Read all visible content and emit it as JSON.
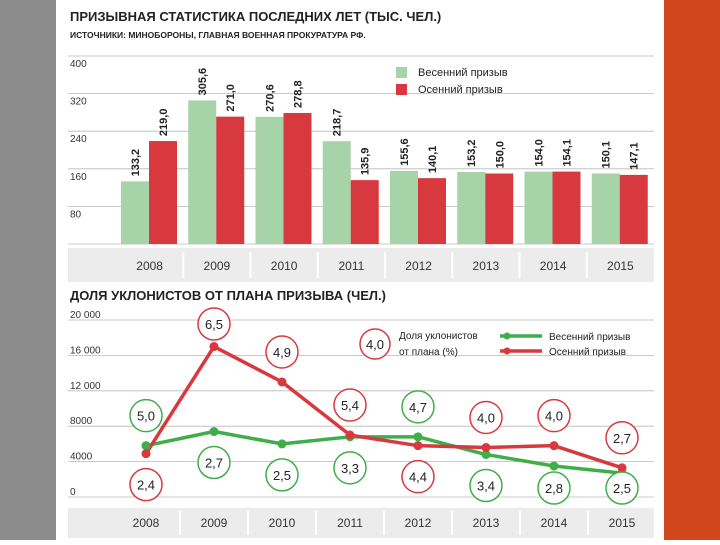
{
  "chart_data": [
    {
      "type": "bar",
      "title": "ПРИЗЫВНАЯ СТАТИСТИКА ПОСЛЕДНИХ ЛЕТ (ТЫС. ЧЕЛ.)",
      "subtitle": "ИСТОЧНИКИ: МИНОБОРОНЫ, ГЛАВНАЯ ВОЕННАЯ ПРОКУРАТУРА РФ.",
      "categories": [
        "2008",
        "2009",
        "2010",
        "2011",
        "2012",
        "2013",
        "2014",
        "2015"
      ],
      "series": [
        {
          "name": "Весенний призыв",
          "color": "#a6d3a8",
          "values": [
            133.2,
            305.6,
            270.6,
            218.7,
            155.6,
            153.2,
            154.0,
            150.1
          ],
          "labels": [
            "133,2",
            "305,6",
            "270,6",
            "218,7",
            "155,6",
            "153,2",
            "154,0",
            "150,1"
          ]
        },
        {
          "name": "Осенний призыв",
          "color": "#d8393f",
          "values": [
            219.0,
            271.0,
            278.8,
            135.9,
            140.1,
            150.0,
            154.1,
            147.1
          ],
          "labels": [
            "219,0",
            "271,0",
            "278,8",
            "135,9",
            "140,1",
            "150,0",
            "154,1",
            "147,1"
          ]
        }
      ],
      "yticks": [
        "400",
        "320",
        "240",
        "160",
        "80",
        "0"
      ],
      "ylim": [
        0,
        400
      ],
      "legend": "top-right"
    },
    {
      "type": "line",
      "title": "ДОЛЯ УКЛОНИСТОВ ОТ ПЛАНА ПРИЗЫВА (ЧЕЛ.)",
      "categories": [
        "2008",
        "2009",
        "2010",
        "2011",
        "2012",
        "2013",
        "2014",
        "2015"
      ],
      "series": [
        {
          "name": "Весенний призыв",
          "color": "#3fae49",
          "values": [
            5800,
            7400,
            6000,
            6800,
            6800,
            4800,
            3500,
            2700
          ],
          "shares": [
            "5,0",
            "2,7",
            "2,5",
            "3,3",
            "4,7",
            "3,4",
            "2,8",
            "2,5"
          ]
        },
        {
          "name": "Осенний призыв",
          "color": "#d8393f",
          "values": [
            4900,
            17000,
            13000,
            7000,
            5800,
            5600,
            5800,
            3300
          ],
          "shares": [
            "2,4",
            "6,5",
            "4,9",
            "5,4",
            "4,4",
            "4,0",
            "4,0",
            "2,7"
          ]
        }
      ],
      "yticks": [
        "20 000",
        "16 000",
        "12 000",
        "8000",
        "4000",
        "0"
      ],
      "ylim": [
        0,
        20000
      ],
      "legend_note_value": "4,0",
      "legend_note_line1": "Доля уклонистов",
      "legend_note_line2": "от плана (%)",
      "legend": "top-right"
    }
  ]
}
